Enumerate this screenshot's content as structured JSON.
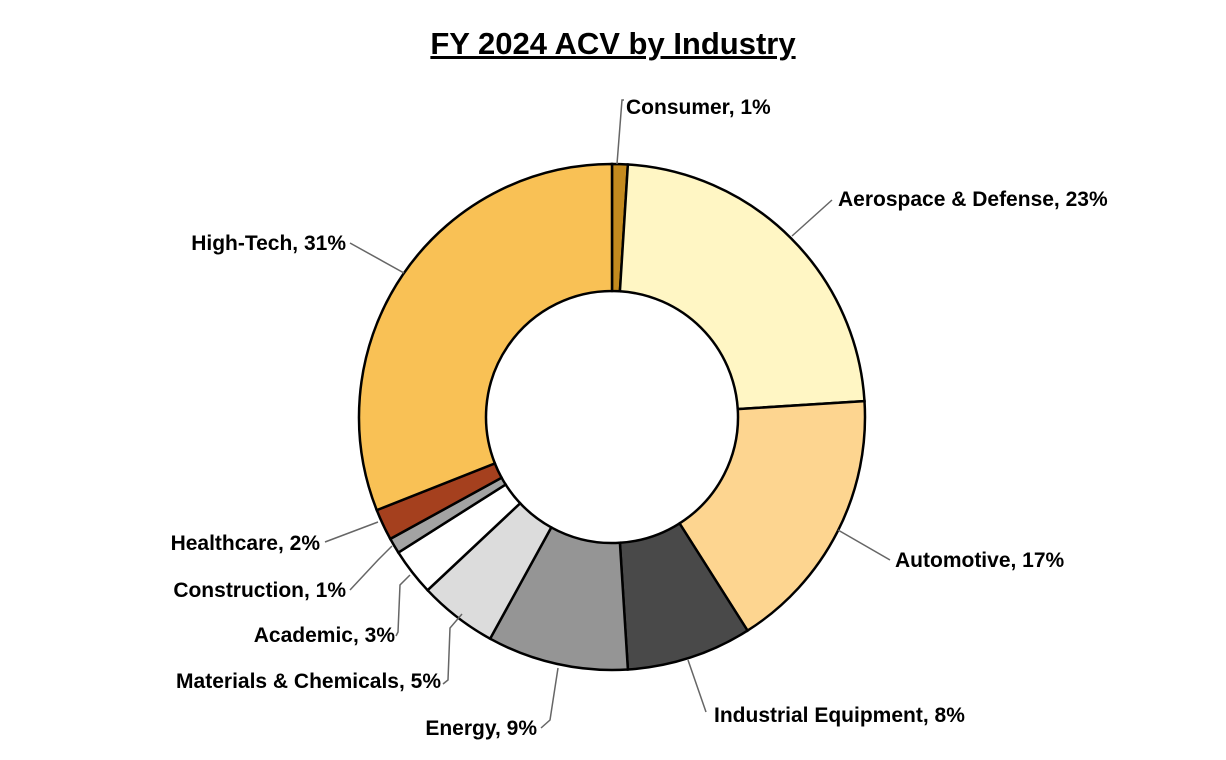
{
  "chart_data": {
    "type": "pie",
    "style": "donut",
    "title": "FY 2024 ACV by Industry",
    "legend": "none (data labels with leader lines)",
    "slices": [
      {
        "label": "Consumer",
        "value": 1,
        "display": "Consumer, 1%",
        "color": "#C38A1E"
      },
      {
        "label": "Aerospace & Defense",
        "value": 23,
        "display": "Aerospace & Defense, 23%",
        "color": "#FFF6C4"
      },
      {
        "label": "Automotive",
        "value": 17,
        "display": "Automotive, 17%",
        "color": "#FDD590"
      },
      {
        "label": "Industrial Equipment",
        "value": 8,
        "display": "Industrial Equipment, 8%",
        "color": "#494949"
      },
      {
        "label": "Energy",
        "value": 9,
        "display": "Energy, 9%",
        "color": "#959595"
      },
      {
        "label": "Materials & Chemicals",
        "value": 5,
        "display": "Materials & Chemicals, 5%",
        "color": "#DCDCDC"
      },
      {
        "label": "Academic",
        "value": 3,
        "display": "Academic, 3%",
        "color": "#FFFFFF"
      },
      {
        "label": "Construction",
        "value": 1,
        "display": "Construction, 1%",
        "color": "#A3A3A3"
      },
      {
        "label": "Healthcare",
        "value": 2,
        "display": "Healthcare, 2%",
        "color": "#A5401E"
      },
      {
        "label": "High-Tech",
        "value": 31,
        "display": "High-Tech, 31%",
        "color": "#F9C155"
      }
    ]
  }
}
